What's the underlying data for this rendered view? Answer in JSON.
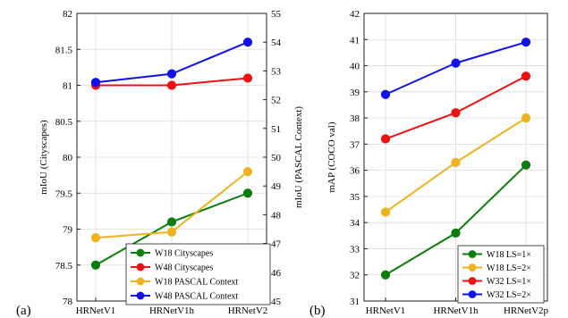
{
  "chart_data": [
    {
      "type": "line",
      "panel_label": "(a)",
      "x": [
        "HRNetV1",
        "HRNetV1h",
        "HRNetV2"
      ],
      "ylabel": "mIoU (Cityscapes)",
      "ylim": [
        78,
        82
      ],
      "yticks": [
        "78",
        "78.5",
        "79",
        "79.5",
        "80",
        "80.5",
        "81",
        "81.5",
        "82"
      ],
      "ylabel_right": "mIoU (PASCAL Context)",
      "ylim_right": [
        45,
        55
      ],
      "yticks_right": [
        "45",
        "46",
        "47",
        "48",
        "49",
        "50",
        "51",
        "52",
        "53",
        "54",
        "55"
      ],
      "grid": true,
      "legend_position": "bottom-right",
      "series": [
        {
          "name": "W18 Cityscapes",
          "axis": "left",
          "color": "#0b7d0b",
          "values": [
            78.5,
            79.1,
            79.5
          ]
        },
        {
          "name": "W48 Cityscapes",
          "axis": "left",
          "color": "#ee1111",
          "values": [
            81.0,
            81.0,
            81.1
          ]
        },
        {
          "name": "W18 PASCAL Context",
          "axis": "right",
          "color": "#eeb21f",
          "values": [
            47.2,
            47.4,
            49.5
          ]
        },
        {
          "name": "W48 PASCAL Context",
          "axis": "right",
          "color": "#1111ee",
          "values": [
            52.6,
            52.9,
            54.0
          ]
        }
      ]
    },
    {
      "type": "line",
      "panel_label": "(b)",
      "x": [
        "HRNetV1",
        "HRNetV1h",
        "HRNetV2p"
      ],
      "ylabel": "mAP (COCO val)",
      "ylim": [
        31,
        42
      ],
      "yticks": [
        "31",
        "32",
        "33",
        "34",
        "35",
        "36",
        "37",
        "38",
        "39",
        "40",
        "41",
        "42"
      ],
      "grid": true,
      "legend_position": "bottom-right",
      "series": [
        {
          "name": "W18 LS=1×",
          "color": "#0b7d0b",
          "values": [
            32.0,
            33.6,
            36.2
          ]
        },
        {
          "name": "W18 LS=2×",
          "color": "#eeb21f",
          "values": [
            34.4,
            36.3,
            38.0
          ]
        },
        {
          "name": "W32 LS=1×",
          "color": "#ee1111",
          "values": [
            37.2,
            38.2,
            39.6
          ]
        },
        {
          "name": "W32 LS=2×",
          "color": "#1111ee",
          "values": [
            38.9,
            40.1,
            40.9
          ]
        }
      ]
    }
  ]
}
